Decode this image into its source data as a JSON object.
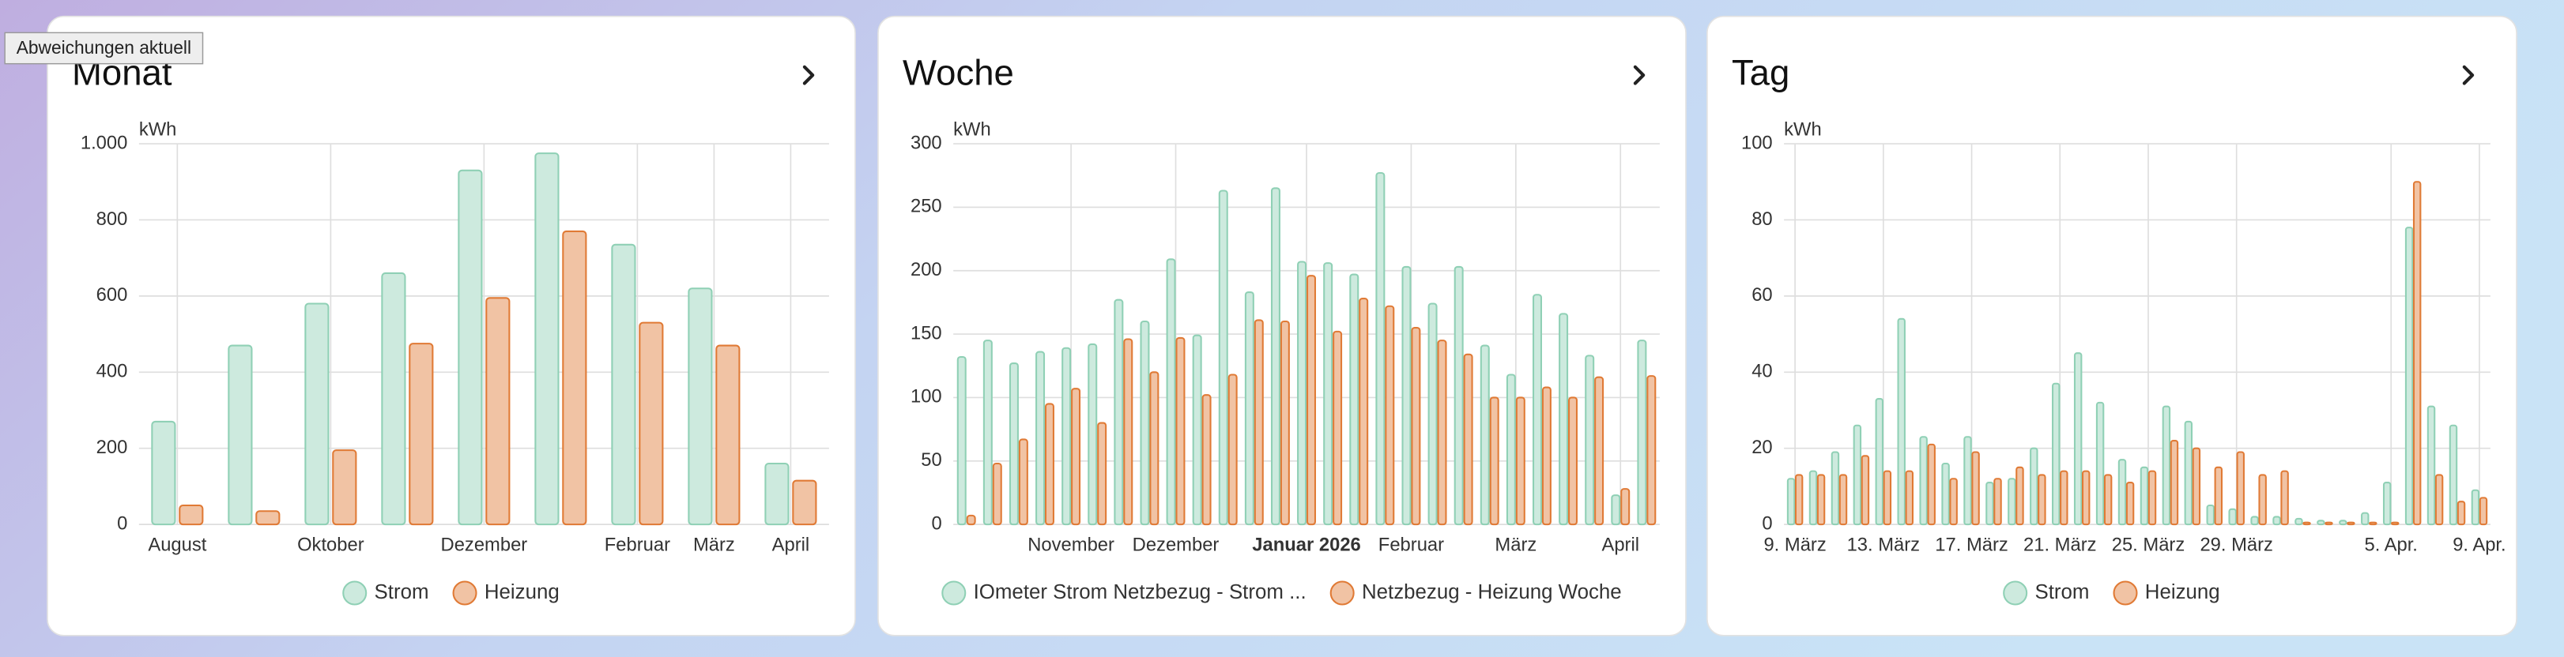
{
  "tooltip": "Abweichungen aktuell",
  "chart_data": [
    {
      "type": "bar",
      "title": "Monat",
      "y_unit": "kWh",
      "categories": [
        "August",
        null,
        "Oktober",
        null,
        "Dezember",
        null,
        "Februar",
        "März",
        "April"
      ],
      "series": [
        {
          "name": "Strom",
          "color": "#8fd0b5",
          "values": [
            270,
            470,
            580,
            660,
            930,
            975,
            735,
            620,
            160
          ]
        },
        {
          "name": "Heizung",
          "color": "#e07a35",
          "values": [
            50,
            35,
            195,
            475,
            595,
            770,
            530,
            470,
            115
          ]
        }
      ],
      "ylim": [
        0,
        1000
      ],
      "yticks": [
        0,
        200,
        400,
        600,
        800,
        {
          "value": 1000,
          "label": "1.000"
        }
      ],
      "grid": true
    },
    {
      "type": "bar",
      "title": "Woche",
      "y_unit": "kWh",
      "categories": [
        null,
        null,
        null,
        null,
        "November",
        null,
        null,
        null,
        "Dezember",
        null,
        null,
        null,
        null,
        "Januar 2026",
        null,
        null,
        null,
        "Februar",
        null,
        null,
        null,
        "März",
        null,
        null,
        null,
        "April",
        null
      ],
      "bold_category_index": 13,
      "series": [
        {
          "name": "IOmeter Strom Netzbezug - Strom ...",
          "color": "#8fd0b5",
          "values": [
            132,
            145,
            127,
            136,
            139,
            142,
            177,
            160,
            209,
            149,
            263,
            183,
            265,
            207,
            206,
            197,
            277,
            203,
            174,
            203,
            141,
            118,
            181,
            166,
            133,
            23,
            145
          ]
        },
        {
          "name": "Netzbezug - Heizung Woche",
          "color": "#e07a35",
          "values": [
            7,
            48,
            67,
            95,
            107,
            80,
            146,
            120,
            147,
            102,
            118,
            161,
            160,
            196,
            152,
            178,
            172,
            155,
            145,
            134,
            100,
            100,
            108,
            100,
            116,
            28,
            117
          ]
        }
      ],
      "ylim": [
        0,
        300
      ],
      "yticks": [
        0,
        50,
        100,
        150,
        200,
        250,
        300
      ],
      "grid": true
    },
    {
      "type": "bar",
      "title": "Tag",
      "y_unit": "kWh",
      "categories": [
        "9. März",
        null,
        null,
        null,
        "13. März",
        null,
        null,
        null,
        "17. März",
        null,
        null,
        null,
        "21. März",
        null,
        null,
        null,
        "25. März",
        null,
        null,
        null,
        "29. März",
        null,
        null,
        null,
        null,
        null,
        null,
        "5. Apr.",
        null,
        null,
        null,
        "9. Apr."
      ],
      "series": [
        {
          "name": "Strom",
          "color": "#8fd0b5",
          "values": [
            12,
            14,
            19,
            26,
            33,
            54,
            23,
            16,
            23,
            11,
            12,
            20,
            37,
            45,
            32,
            17,
            15,
            31,
            27,
            5,
            4,
            2,
            2,
            1.5,
            1,
            1,
            3,
            11,
            78,
            31,
            26,
            9
          ]
        },
        {
          "name": "Heizung",
          "color": "#e07a35",
          "values": [
            13,
            13,
            13,
            18,
            14,
            14,
            21,
            12,
            19,
            12,
            15,
            13,
            14,
            14,
            13,
            11,
            14,
            22,
            20,
            15,
            19,
            13,
            14,
            0.5,
            0.5,
            0.5,
            0.5,
            0.5,
            90,
            13,
            6,
            7
          ]
        }
      ],
      "ylim": [
        0,
        100
      ],
      "yticks": [
        0,
        20,
        40,
        60,
        80,
        100
      ],
      "grid": true
    }
  ]
}
